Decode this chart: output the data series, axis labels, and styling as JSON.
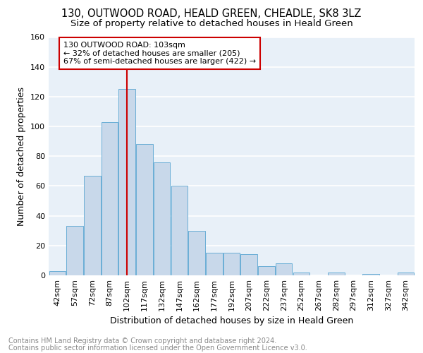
{
  "title_line1": "130, OUTWOOD ROAD, HEALD GREEN, CHEADLE, SK8 3LZ",
  "title_line2": "Size of property relative to detached houses in Heald Green",
  "xlabel": "Distribution of detached houses by size in Heald Green",
  "ylabel": "Number of detached properties",
  "categories": [
    "42sqm",
    "57sqm",
    "72sqm",
    "87sqm",
    "102sqm",
    "117sqm",
    "132sqm",
    "147sqm",
    "162sqm",
    "177sqm",
    "192sqm",
    "207sqm",
    "222sqm",
    "237sqm",
    "252sqm",
    "267sqm",
    "282sqm",
    "297sqm",
    "312sqm",
    "327sqm",
    "342sqm"
  ],
  "values": [
    3,
    33,
    67,
    103,
    125,
    88,
    76,
    60,
    30,
    15,
    15,
    14,
    6,
    8,
    2,
    0,
    2,
    0,
    1,
    0,
    2
  ],
  "bar_color": "#c8d8ea",
  "bar_edge_color": "#6aaed6",
  "vline_index": 4,
  "vline_color": "#cc0000",
  "annotation_text": "130 OUTWOOD ROAD: 103sqm\n← 32% of detached houses are smaller (205)\n67% of semi-detached houses are larger (422) →",
  "annotation_box_color": "#ffffff",
  "annotation_box_edge": "#cc0000",
  "footer_line1": "Contains HM Land Registry data © Crown copyright and database right 2024.",
  "footer_line2": "Contains public sector information licensed under the Open Government Licence v3.0.",
  "ylim": [
    0,
    160
  ],
  "yticks": [
    0,
    20,
    40,
    60,
    80,
    100,
    120,
    140,
    160
  ],
  "background_color": "#e8f0f8",
  "grid_color": "#ffffff",
  "title_fontsize": 10.5,
  "subtitle_fontsize": 9.5,
  "axis_label_fontsize": 9,
  "tick_fontsize": 8,
  "footer_fontsize": 7,
  "annotation_fontsize": 8
}
